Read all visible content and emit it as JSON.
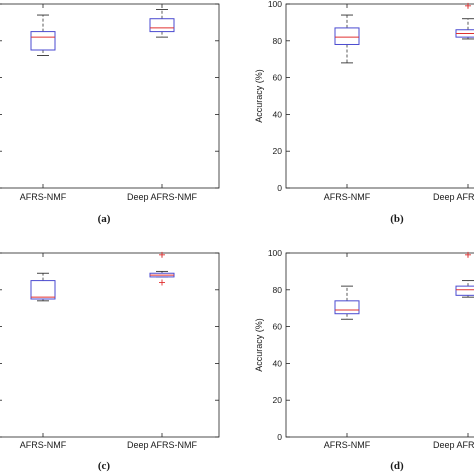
{
  "chart_data": [
    {
      "type": "box",
      "panel_label": "(a)",
      "categories": [
        "AFRS-NMF",
        "Deep AFRS-NMF"
      ],
      "xlabel": "",
      "ylabel": "",
      "ylim": [
        0,
        100
      ],
      "yticks": [],
      "boxes": [
        {
          "whisker_low": 72,
          "q1": 75,
          "median": 82,
          "q3": 85,
          "whisker_high": 94,
          "outliers": []
        },
        {
          "whisker_low": 82,
          "q1": 85,
          "median": 87,
          "q3": 92,
          "whisker_high": 97,
          "outliers": []
        }
      ],
      "colors": {
        "box": "#4a4ad0",
        "median": "#e03030",
        "outlier": "#e03030",
        "whisker": "#333333"
      }
    },
    {
      "type": "box",
      "panel_label": "(b)",
      "categories": [
        "AFRS-NMF",
        "Deep AFRS-NMF"
      ],
      "xlabel": "",
      "ylabel": "Accuracy (%)",
      "ylim": [
        0,
        100
      ],
      "yticks": [
        0,
        20,
        40,
        60,
        80,
        100
      ],
      "boxes": [
        {
          "whisker_low": 68,
          "q1": 78,
          "median": 82,
          "q3": 87,
          "whisker_high": 94,
          "outliers": []
        },
        {
          "whisker_low": 81,
          "q1": 82,
          "median": 84,
          "q3": 86,
          "whisker_high": 92,
          "outliers": [
            99
          ]
        }
      ],
      "colors": {
        "box": "#4a4ad0",
        "median": "#e03030",
        "outlier": "#e03030",
        "whisker": "#333333"
      }
    },
    {
      "type": "box",
      "panel_label": "(c)",
      "categories": [
        "AFRS-NMF",
        "Deep AFRS-NMF"
      ],
      "xlabel": "",
      "ylabel": "",
      "ylim": [
        0,
        100
      ],
      "yticks": [],
      "boxes": [
        {
          "whisker_low": 74,
          "q1": 75,
          "median": 76,
          "q3": 85,
          "whisker_high": 89,
          "outliers": []
        },
        {
          "whisker_low": 87,
          "q1": 87,
          "median": 88,
          "q3": 89,
          "whisker_high": 90,
          "outliers": [
            84,
            99
          ]
        }
      ],
      "colors": {
        "box": "#4a4ad0",
        "median": "#e03030",
        "outlier": "#e03030",
        "whisker": "#333333"
      }
    },
    {
      "type": "box",
      "panel_label": "(d)",
      "categories": [
        "AFRS-NMF",
        "Deep AFRS-NMF"
      ],
      "xlabel": "",
      "ylabel": "Accuracy (%)",
      "ylim": [
        0,
        100
      ],
      "yticks": [
        0,
        20,
        40,
        60,
        80,
        100
      ],
      "boxes": [
        {
          "whisker_low": 64,
          "q1": 67,
          "median": 69,
          "q3": 74,
          "whisker_high": 82,
          "outliers": []
        },
        {
          "whisker_low": 76,
          "q1": 77,
          "median": 80,
          "q3": 82,
          "whisker_high": 85,
          "outliers": [
            99
          ]
        }
      ],
      "colors": {
        "box": "#4a4ad0",
        "median": "#e03030",
        "outlier": "#e03030",
        "whisker": "#333333"
      }
    }
  ]
}
